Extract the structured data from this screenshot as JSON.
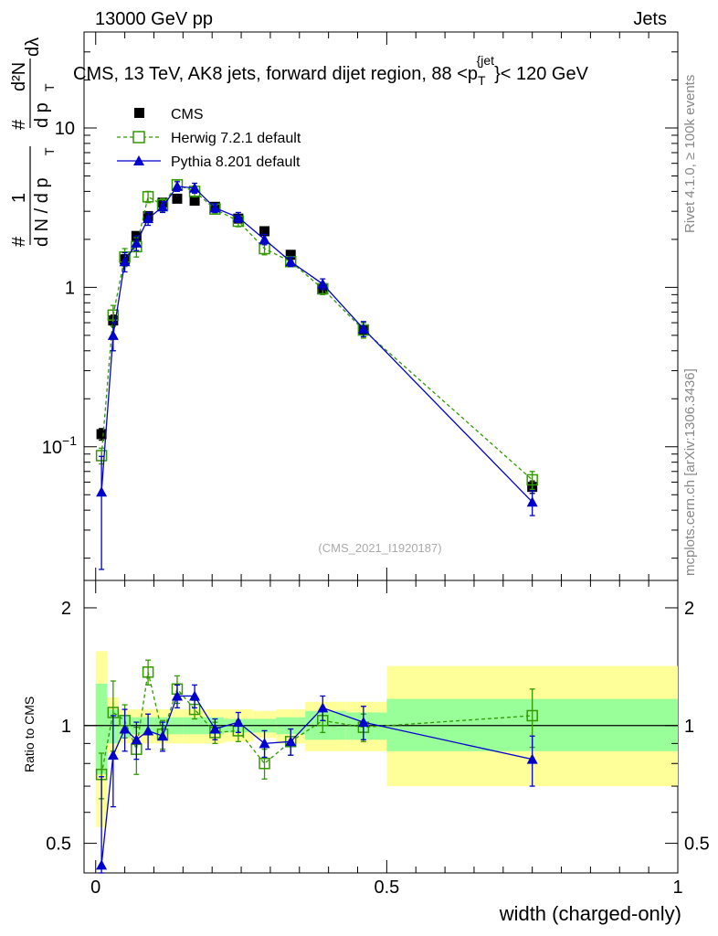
{
  "header": {
    "left": "13000 GeV pp",
    "right": "Jets"
  },
  "side_labels": {
    "rivet": "Rivet 4.1.0, ≥ 100k events",
    "mcplots": "mcplots.cern.ch [arXiv:1306.3436]"
  },
  "chart_data": [
    {
      "type": "scatter",
      "title": "CMS, 13 TeV, AK8 jets, forward dijet region, 88 <p_T^{jet}< 120 GeV",
      "title_parts": {
        "main": "CMS, 13 TeV, AK8 jets, forward dijet region, 88 <p",
        "sub": "T",
        "sup": "{jet",
        "tail": "}< 120 GeV"
      },
      "ylabel": "(1 / dN/dp_T) d²N / dp_T dλ",
      "ylabel_parts": {
        "frac1_num": "1",
        "frac1_den": "d N / d p",
        "frac2_num": "d²N",
        "frac2_den": "d p",
        "lambda": "dλ",
        "sub": "T",
        "hash": "#"
      },
      "yscale": "log",
      "ylim": [
        0.0145,
        40
      ],
      "xlim": [
        -0.02,
        1.0
      ],
      "yticks": [
        {
          "value": 0.1,
          "base": "10",
          "exp": "−1"
        },
        {
          "value": 1,
          "label": "1"
        },
        {
          "value": 10,
          "label": "10"
        }
      ],
      "watermark": "(CMS_2021_I1920187)",
      "legend_position": "top-left",
      "legend": [
        "CMS",
        "Herwig 7.2.1 default",
        "Pythia 8.201 default"
      ],
      "colors": {
        "cms": "#000000",
        "herwig": "#339900",
        "pythia": "#0000cc"
      },
      "series": [
        {
          "name": "CMS",
          "marker": "square",
          "x": [
            0.01,
            0.03,
            0.05,
            0.07,
            0.09,
            0.115,
            0.14,
            0.17,
            0.205,
            0.245,
            0.29,
            0.335,
            0.39,
            0.46,
            0.75
          ],
          "values": [
            0.12,
            0.62,
            1.5,
            2.1,
            2.8,
            3.4,
            3.6,
            3.5,
            3.2,
            2.7,
            2.25,
            1.6,
            0.97,
            0.54,
            0.056
          ],
          "yerr": [
            0.01,
            0.05,
            0.1,
            0.1,
            0.1,
            0.1,
            0.1,
            0.1,
            0.1,
            0.1,
            0.08,
            0.06,
            0.04,
            0.03,
            0.005
          ]
        },
        {
          "name": "Herwig 7.2.1 default",
          "marker": "open-square",
          "x": [
            0.01,
            0.03,
            0.05,
            0.07,
            0.09,
            0.115,
            0.14,
            0.17,
            0.205,
            0.245,
            0.29,
            0.335,
            0.39,
            0.46,
            0.75
          ],
          "values": [
            0.088,
            0.67,
            1.55,
            1.8,
            3.7,
            3.3,
            4.4,
            4.0,
            3.1,
            2.6,
            1.75,
            1.45,
            0.98,
            0.54,
            0.062
          ],
          "yerr": [
            0.01,
            0.1,
            0.2,
            0.25,
            0.3,
            0.3,
            0.3,
            0.3,
            0.2,
            0.2,
            0.15,
            0.1,
            0.08,
            0.06,
            0.008
          ]
        },
        {
          "name": "Pythia 8.201 default",
          "marker": "triangle",
          "x": [
            0.01,
            0.03,
            0.05,
            0.07,
            0.09,
            0.115,
            0.14,
            0.17,
            0.205,
            0.245,
            0.29,
            0.335,
            0.39,
            0.46,
            0.75
          ],
          "values": [
            0.052,
            0.5,
            1.45,
            1.9,
            2.7,
            3.2,
            4.3,
            4.2,
            3.15,
            2.75,
            2.0,
            1.45,
            1.05,
            0.55,
            0.045
          ],
          "yerr": [
            0.035,
            0.1,
            0.2,
            0.2,
            0.25,
            0.25,
            0.3,
            0.3,
            0.2,
            0.2,
            0.15,
            0.1,
            0.08,
            0.06,
            0.008
          ]
        }
      ]
    },
    {
      "type": "scatter",
      "ylabel": "Ratio to CMS",
      "xlabel": "width (charged-only)",
      "yscale": "log",
      "ylim": [
        0.42,
        2.35
      ],
      "xlim": [
        -0.02,
        1.0
      ],
      "yticks": [
        0.5,
        1,
        2
      ],
      "xticks": [
        0,
        0.5,
        1
      ],
      "xtick_labels": [
        "0",
        "0.5",
        "1"
      ],
      "reference_line": 1.0,
      "bin_edges": [
        0.0,
        0.02,
        0.04,
        0.06,
        0.08,
        0.1,
        0.13,
        0.15,
        0.19,
        0.22,
        0.27,
        0.31,
        0.36,
        0.43,
        0.5,
        1.0
      ],
      "band_inner": {
        "color": "#99ff99",
        "lo": [
          0.75,
          0.9,
          0.93,
          0.95,
          0.95,
          0.95,
          0.95,
          0.95,
          0.95,
          0.96,
          0.96,
          0.95,
          0.92,
          0.92,
          0.86
        ],
        "hi": [
          1.28,
          1.1,
          1.06,
          1.05,
          1.05,
          1.05,
          1.05,
          1.05,
          1.05,
          1.04,
          1.04,
          1.05,
          1.09,
          1.08,
          1.17
        ]
      },
      "band_outer": {
        "color": "#ffff99",
        "lo": [
          0.55,
          0.85,
          0.9,
          0.9,
          0.9,
          0.9,
          0.9,
          0.9,
          0.9,
          0.91,
          0.93,
          0.9,
          0.86,
          0.86,
          0.7
        ],
        "hi": [
          1.55,
          1.18,
          1.1,
          1.1,
          1.1,
          1.1,
          1.1,
          1.1,
          1.1,
          1.1,
          1.09,
          1.1,
          1.15,
          1.15,
          1.42
        ]
      },
      "series": [
        {
          "name": "Herwig 7.2.1 default",
          "x": [
            0.01,
            0.03,
            0.05,
            0.07,
            0.09,
            0.115,
            0.14,
            0.17,
            0.205,
            0.245,
            0.29,
            0.335,
            0.39,
            0.46,
            0.75
          ],
          "values": [
            0.75,
            1.08,
            1.03,
            0.87,
            1.37,
            0.95,
            1.24,
            1.1,
            0.96,
            0.97,
            0.8,
            0.91,
            1.03,
            0.99,
            1.06
          ],
          "yerr": [
            0.1,
            0.22,
            0.1,
            0.12,
            0.1,
            0.08,
            0.1,
            0.06,
            0.06,
            0.06,
            0.07,
            0.07,
            0.07,
            0.08,
            0.18
          ]
        },
        {
          "name": "Pythia 8.201 default",
          "x": [
            0.01,
            0.03,
            0.05,
            0.07,
            0.09,
            0.115,
            0.14,
            0.17,
            0.205,
            0.245,
            0.29,
            0.335,
            0.39,
            0.46,
            0.75
          ],
          "values": [
            0.44,
            0.84,
            0.98,
            0.92,
            0.97,
            0.94,
            1.19,
            1.19,
            0.98,
            1.02,
            0.9,
            0.91,
            1.11,
            1.02,
            0.82
          ],
          "yerr": [
            0.3,
            0.22,
            0.12,
            0.1,
            0.1,
            0.08,
            0.08,
            0.08,
            0.06,
            0.06,
            0.07,
            0.07,
            0.08,
            0.1,
            0.12
          ]
        }
      ]
    }
  ]
}
